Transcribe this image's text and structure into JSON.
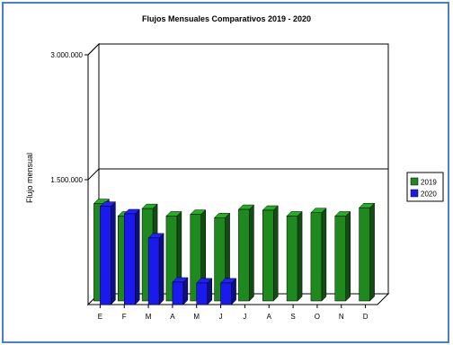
{
  "chart_data": {
    "type": "bar",
    "title": "Flujos Mensuales Comparativos 2019 - 2020",
    "ylabel": "Flujo mensual",
    "xlabel": "",
    "categories": [
      "E",
      "F",
      "M",
      "A",
      "M",
      "J",
      "J",
      "A",
      "S",
      "O",
      "N",
      "D"
    ],
    "y_ticks": [
      "3.000.000",
      "1.500.000"
    ],
    "y_tick_values": [
      3000000,
      1500000
    ],
    "ylim": [
      0,
      3000000
    ],
    "three_d": true,
    "legend_position": "right",
    "series": [
      {
        "name": "2019",
        "color": "#1e8a1e",
        "values": [
          1170000,
          1020000,
          1110000,
          1020000,
          1040000,
          1000000,
          1100000,
          1090000,
          1020000,
          1060000,
          1020000,
          1120000
        ]
      },
      {
        "name": "2020",
        "color": "#1a1aee",
        "values": [
          1180000,
          1090000,
          800000,
          270000,
          260000,
          260000,
          null,
          null,
          null,
          null,
          null,
          null
        ]
      }
    ]
  }
}
